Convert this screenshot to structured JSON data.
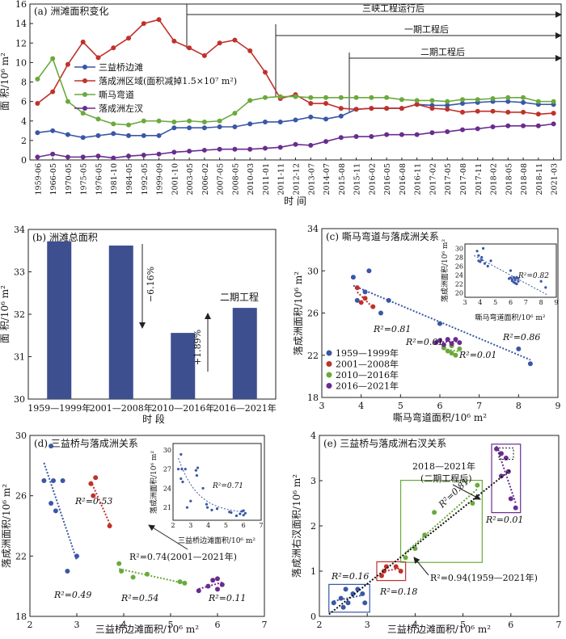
{
  "colors": {
    "blue": "#3a57a6",
    "red": "#c0312b",
    "green": "#6aaa3c",
    "purple": "#6a2c8e",
    "bar": "#3d4f8f"
  },
  "chart_data": [
    {
      "panel": "a",
      "type": "line",
      "title": "(a) 洲滩面积变化",
      "xlabel": "时 间",
      "ylabel": "面 积/10⁶ m²",
      "ylim": [
        0,
        16
      ],
      "yticks": [
        0,
        2,
        4,
        6,
        8,
        10,
        12,
        14,
        16
      ],
      "categories": [
        "1959-06",
        "1966-05",
        "1970-05",
        "1975-05",
        "1976-05",
        "1981-10",
        "1984-05",
        "1992-05",
        "1999-09",
        "2001-10",
        "2003-05",
        "2006-02",
        "2007-05",
        "2008-05",
        "2010-03",
        "2011-01",
        "2011-11",
        "2012-12",
        "2013-07",
        "2014-07",
        "2015-08",
        "2015-11",
        "2016-02",
        "2016-05",
        "2016-08",
        "2016-11",
        "2017-02",
        "2017-05",
        "2017-08",
        "2017-11",
        "2018-02",
        "2018-05",
        "2018-08",
        "2018-11",
        "2021-03"
      ],
      "series": [
        {
          "name": "三益桥边滩",
          "color": "blue",
          "values": [
            2.8,
            3.0,
            2.6,
            2.3,
            2.5,
            2.7,
            2.5,
            2.5,
            2.5,
            3.3,
            3.3,
            3.3,
            3.4,
            3.4,
            3.7,
            3.9,
            3.9,
            4.1,
            4.4,
            4.2,
            4.5,
            5.2,
            5.3,
            5.3,
            5.3,
            5.7,
            5.6,
            5.6,
            5.8,
            5.9,
            6.0,
            6.0,
            5.9,
            5.7,
            5.7
          ]
        },
        {
          "name": "落成洲区域(面积减掉1.5×10⁷ m²)",
          "color": "red",
          "values": [
            5.8,
            7.0,
            9.8,
            12.1,
            10.5,
            11.5,
            12.5,
            14.0,
            14.4,
            12.2,
            11.5,
            10.7,
            12.0,
            12.3,
            11.2,
            9.0,
            6.3,
            6.7,
            5.8,
            5.8,
            5.3,
            5.2,
            5.3,
            5.3,
            5.3,
            5.7,
            5.3,
            5.2,
            4.9,
            5.0,
            5.0,
            4.9,
            4.9,
            4.7,
            4.8
          ]
        },
        {
          "name": "嘶马弯道",
          "color": "green",
          "values": [
            8.3,
            10.4,
            6.0,
            4.8,
            4.2,
            3.7,
            3.6,
            4.0,
            4.0,
            3.9,
            4.0,
            3.9,
            4.0,
            4.8,
            6.1,
            6.4,
            6.5,
            6.5,
            6.4,
            6.4,
            6.4,
            6.4,
            6.4,
            6.4,
            6.2,
            6.1,
            6.1,
            6.0,
            6.2,
            6.2,
            6.3,
            6.4,
            6.4,
            6.0,
            6.0
          ]
        },
        {
          "name": "落成洲左汊",
          "color": "purple",
          "values": [
            0.3,
            0.6,
            0.3,
            0.3,
            0.4,
            0.2,
            0.4,
            0.5,
            0.6,
            0.8,
            0.9,
            1.0,
            1.1,
            1.1,
            1.1,
            1.2,
            1.3,
            1.6,
            1.5,
            1.9,
            2.3,
            2.4,
            2.4,
            2.6,
            2.6,
            2.6,
            2.8,
            2.9,
            3.1,
            3.2,
            3.4,
            3.5,
            3.5,
            3.5,
            3.7
          ]
        }
      ],
      "annotations": [
        "三峡工程运行后",
        "一期工程后",
        "二期工程后"
      ]
    },
    {
      "panel": "b",
      "type": "bar",
      "title": "(b) 洲滩总面积",
      "xlabel": "时 段",
      "ylabel": "面 积/10⁶ m²",
      "ylim": [
        30,
        34
      ],
      "yticks": [
        30,
        31,
        32,
        33,
        34
      ],
      "categories": [
        "1959—1999年",
        "2001—2008年",
        "2010—2016年",
        "2016—2021年"
      ],
      "values": [
        33.72,
        33.62,
        31.56,
        32.15
      ],
      "annotations": [
        "−6.16%",
        "+1.89%",
        "二期工程"
      ]
    },
    {
      "panel": "c",
      "type": "scatter",
      "title": "(c) 嘶马弯道与落成洲关系",
      "xlabel": "嘶马弯道面积/10⁶ m²",
      "ylabel": "落成洲面积/10⁶ m²",
      "xlim": [
        3,
        9
      ],
      "ylim": [
        18,
        34
      ],
      "xticks": [
        3,
        4,
        5,
        6,
        7,
        8,
        9
      ],
      "yticks": [
        18,
        22,
        26,
        30,
        34
      ],
      "series": [
        {
          "name": "1959—1999年",
          "color": "blue",
          "points": [
            [
              3.8,
              29.4
            ],
            [
              3.9,
              27.2
            ],
            [
              4.1,
              28.0
            ],
            [
              4.2,
              30.0
            ],
            [
              4.5,
              26.0
            ],
            [
              4.7,
              27.2
            ],
            [
              6.0,
              25.0
            ],
            [
              8.0,
              22.6
            ],
            [
              8.3,
              21.2
            ]
          ]
        },
        {
          "name": "2001—2008年",
          "color": "red",
          "points": [
            [
              3.9,
              28.4
            ],
            [
              4.0,
              27.0
            ],
            [
              4.1,
              27.4
            ],
            [
              4.3,
              26.6
            ]
          ]
        },
        {
          "name": "2010—2016年",
          "color": "green",
          "points": [
            [
              6.1,
              22.7
            ],
            [
              6.2,
              22.4
            ],
            [
              6.3,
              22.2
            ],
            [
              6.4,
              22.0
            ],
            [
              6.5,
              22.6
            ],
            [
              6.3,
              22.9
            ]
          ]
        },
        {
          "name": "2016—2021年",
          "color": "purple",
          "points": [
            [
              5.9,
              23.2
            ],
            [
              6.0,
              23.4
            ],
            [
              6.1,
              23.0
            ],
            [
              6.2,
              23.5
            ],
            [
              6.3,
              23.1
            ],
            [
              6.4,
              23.5
            ],
            [
              6.5,
              23.2
            ]
          ]
        }
      ],
      "r2_labels": [
        "R²=0.81",
        "R²=0.01",
        "R²=0.01",
        "R²=0.86"
      ],
      "inset": {
        "xlabel": "嘶马弯道面积/10⁶ m²",
        "ylabel": "落成洲面积/10⁶ m²",
        "xlim": [
          3,
          9
        ],
        "ylim": [
          19,
          31
        ],
        "xticks": [
          3,
          4,
          5,
          6,
          7,
          8,
          9
        ],
        "yticks": [
          20,
          22,
          24,
          26,
          28,
          30
        ],
        "r2": "R²=0.82"
      }
    },
    {
      "panel": "d",
      "type": "scatter",
      "title": "(d) 三益桥与落成洲关系",
      "xlabel": "三益桥边滩面积/10⁶ m²",
      "ylabel": "落成洲面积/10⁶ m²",
      "xlim": [
        2,
        7
      ],
      "ylim": [
        18,
        30
      ],
      "xticks": [
        2,
        3,
        4,
        5,
        6,
        7
      ],
      "yticks": [
        18,
        22,
        26,
        30
      ],
      "series": [
        {
          "name": "1959—1999年",
          "color": "blue",
          "points": [
            [
              2.3,
              27.0
            ],
            [
              2.45,
              29.3
            ],
            [
              2.5,
              27.0
            ],
            [
              2.45,
              25.5
            ],
            [
              2.55,
              25.0
            ],
            [
              2.7,
              27.0
            ],
            [
              2.8,
              21.0
            ],
            [
              3.0,
              22.0
            ]
          ]
        },
        {
          "name": "2001—2008年",
          "color": "red",
          "points": [
            [
              3.3,
              26.8
            ],
            [
              3.35,
              26.0
            ],
            [
              3.4,
              27.2
            ],
            [
              3.7,
              24.0
            ]
          ]
        },
        {
          "name": "2010—2016年",
          "color": "green",
          "points": [
            [
              3.9,
              21.5
            ],
            [
              3.95,
              21.0
            ],
            [
              4.2,
              20.6
            ],
            [
              4.5,
              20.8
            ],
            [
              5.2,
              20.3
            ],
            [
              5.3,
              20.2
            ]
          ]
        },
        {
          "name": "2016—2021年",
          "color": "purple",
          "points": [
            [
              5.6,
              19.7
            ],
            [
              5.8,
              20.0
            ],
            [
              5.9,
              20.4
            ],
            [
              6.0,
              19.8
            ],
            [
              6.1,
              20.1
            ],
            [
              6.0,
              20.5
            ]
          ]
        }
      ],
      "r2_labels": [
        "R²=0.53",
        "R²=0.74(2001—2021年)",
        "R²=0.49",
        "R²=0.54",
        "R²=0.11"
      ],
      "inset": {
        "xlabel": "三益桥边滩面积/10⁶ m²",
        "ylabel": "落成洲面积/10⁶ m²",
        "xlim": [
          2,
          7
        ],
        "ylim": [
          19,
          31
        ],
        "xticks": [
          2,
          3,
          4,
          5,
          6,
          7
        ],
        "yticks": [
          21,
          24,
          27,
          30
        ],
        "r2": "R²=0.71"
      }
    },
    {
      "panel": "e",
      "type": "scatter",
      "title": "(e) 三益桥与落成洲右汊关系",
      "xlabel": "三益桥边滩面积/10⁶ m²",
      "ylabel": "落成洲右汊面积/10⁶ m²",
      "xlim": [
        2,
        7
      ],
      "ylim": [
        0,
        4
      ],
      "xticks": [
        2,
        3,
        4,
        5,
        6,
        7
      ],
      "yticks": [
        0,
        1,
        2,
        3,
        4
      ],
      "series": [
        {
          "name": "1959—1999年",
          "color": "blue",
          "points": [
            [
              2.3,
              0.3
            ],
            [
              2.45,
              0.4
            ],
            [
              2.5,
              0.2
            ],
            [
              2.55,
              0.6
            ],
            [
              2.6,
              0.3
            ],
            [
              2.7,
              0.5
            ],
            [
              2.8,
              0.6
            ],
            [
              2.9,
              0.5
            ],
            [
              2.95,
              0.3
            ]
          ]
        },
        {
          "name": "2001—2008年",
          "color": "red",
          "points": [
            [
              3.3,
              0.9
            ],
            [
              3.35,
              1.0
            ],
            [
              3.4,
              1.1
            ],
            [
              3.6,
              1.1
            ],
            [
              3.7,
              1.0
            ]
          ]
        },
        {
          "name": "2010—2016年",
          "color": "green",
          "points": [
            [
              3.8,
              1.3
            ],
            [
              4.0,
              1.5
            ],
            [
              4.2,
              1.8
            ],
            [
              4.4,
              2.3
            ],
            [
              5.2,
              2.5
            ],
            [
              5.3,
              2.9
            ]
          ]
        },
        {
          "name": "2016—2021年",
          "color": "purple",
          "points": [
            [
              5.7,
              3.7
            ],
            [
              5.8,
              3.6
            ],
            [
              5.9,
              3.5
            ],
            [
              5.95,
              3.2
            ],
            [
              6.0,
              2.6
            ],
            [
              6.1,
              2.4
            ],
            [
              5.8,
              3.1
            ]
          ]
        }
      ],
      "r2_labels": [
        "R²=0.16",
        "R²=0.18",
        "R²=0.81",
        "R²=0.01",
        "R²=0.94(1959—2021年)"
      ],
      "annotations": [
        "2018—2021年",
        "(二期工程后)"
      ]
    }
  ]
}
